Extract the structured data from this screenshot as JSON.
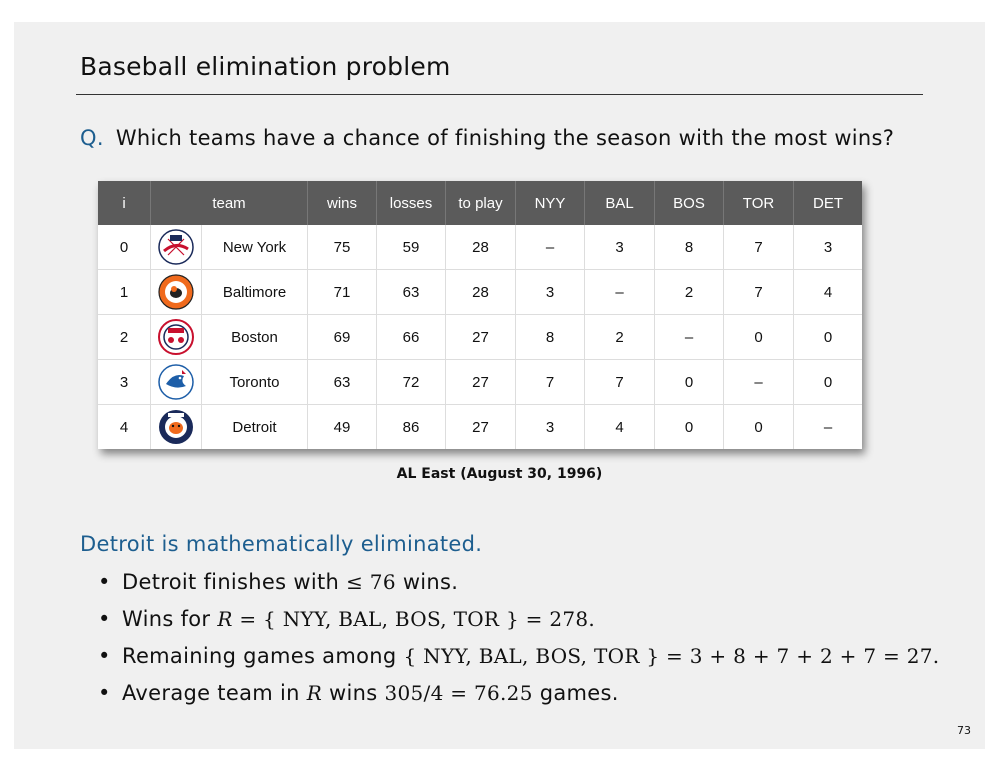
{
  "title": "Baseball elimination problem",
  "question": {
    "prefix": "Q.",
    "text": "Which teams have a chance of finishing the season with the most wins?"
  },
  "table": {
    "headers": [
      "i",
      "team",
      "wins",
      "losses",
      "to play",
      "NYY",
      "BAL",
      "BOS",
      "TOR",
      "DET"
    ],
    "rows": [
      {
        "i": "0",
        "team": "New York",
        "logo_icon": "yankees-logo-icon",
        "wins": "75",
        "losses": "59",
        "to_play": "28",
        "vs": [
          "–",
          "3",
          "8",
          "7",
          "3"
        ]
      },
      {
        "i": "1",
        "team": "Baltimore",
        "logo_icon": "orioles-logo-icon",
        "wins": "71",
        "losses": "63",
        "to_play": "28",
        "vs": [
          "3",
          "–",
          "2",
          "7",
          "4"
        ]
      },
      {
        "i": "2",
        "team": "Boston",
        "logo_icon": "red-sox-logo-icon",
        "wins": "69",
        "losses": "66",
        "to_play": "27",
        "vs": [
          "8",
          "2",
          "–",
          "0",
          "0"
        ]
      },
      {
        "i": "3",
        "team": "Toronto",
        "logo_icon": "blue-jays-logo-icon",
        "wins": "63",
        "losses": "72",
        "to_play": "27",
        "vs": [
          "7",
          "7",
          "0",
          "–",
          "0"
        ]
      },
      {
        "i": "4",
        "team": "Detroit",
        "logo_icon": "tigers-logo-icon",
        "wins": "49",
        "losses": "86",
        "to_play": "27",
        "vs": [
          "3",
          "4",
          "0",
          "0",
          "–"
        ]
      }
    ],
    "caption": "AL East (August 30, 1996)"
  },
  "conclusion": "Detroit is mathematically eliminated.",
  "bullets": {
    "b1_text": "Detroit finishes with ",
    "b1_math": "≤ 76",
    "b1_tail": " wins.",
    "b2_text": "Wins for ",
    "b2_var": "R",
    "b2_math": " = { NYY, BAL, BOS, TOR } = 278.",
    "b3_text": "Remaining games among ",
    "b3_math": "{ NYY, BAL, BOS, TOR } = 3 + 8 + 7 + 2 + 7 = 27.",
    "b4_text": "Average team in ",
    "b4_var": "R",
    "b4_mid": " wins ",
    "b4_math": "305/4 = 76.25",
    "b4_tail": " games."
  },
  "page_number": "73",
  "colors": {
    "accent": "#1d5e8f",
    "header_bg": "#5b5b5b"
  }
}
